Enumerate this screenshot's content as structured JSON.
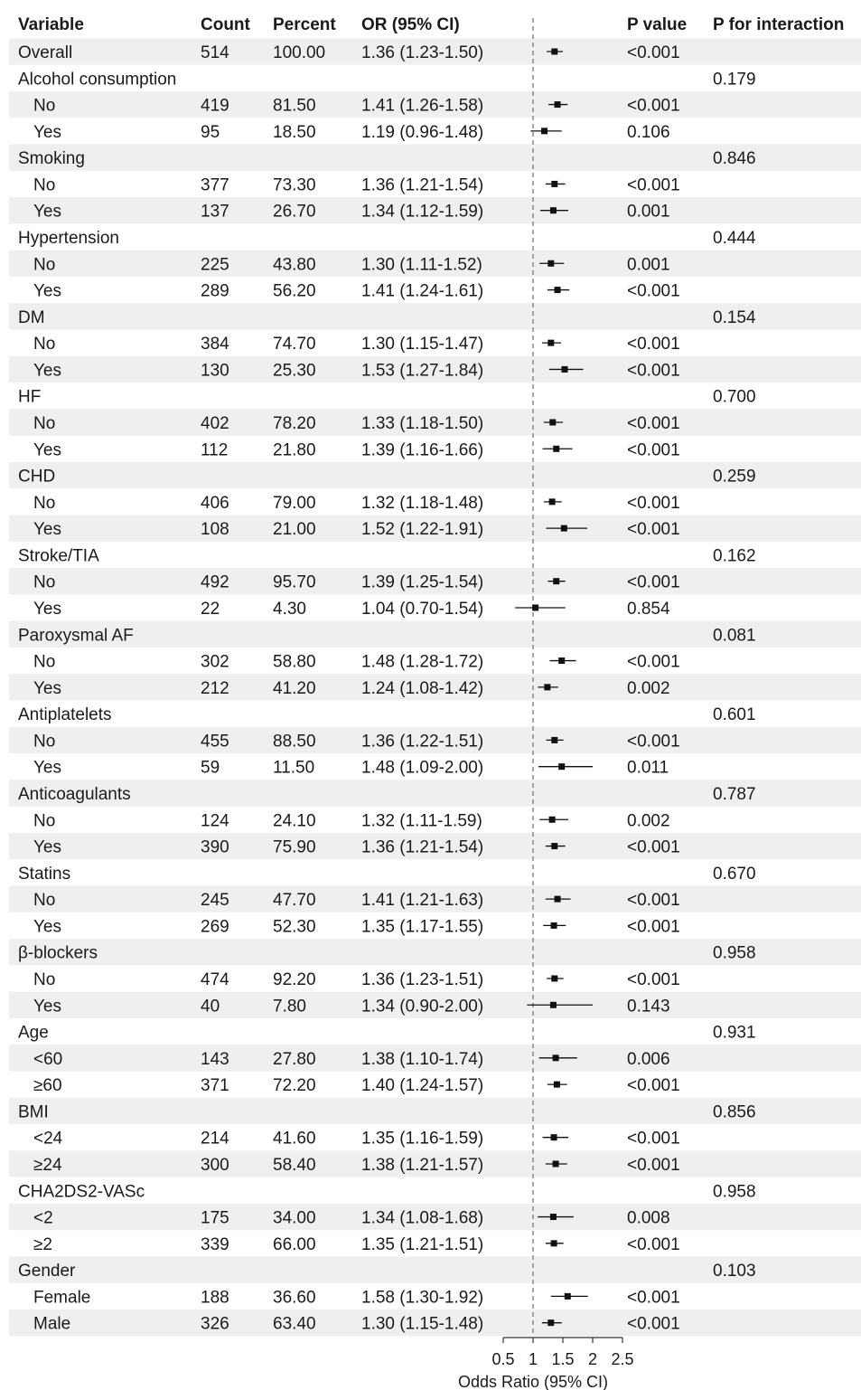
{
  "chart_data": {
    "type": "forest",
    "headers": {
      "variable": "Variable",
      "count": "Count",
      "percent": "Percent",
      "or": "OR (95% CI)",
      "p": "P value",
      "p_int": "P for interaction"
    },
    "xlabel": "Odds Ratio (95% CI)",
    "xlim": [
      0.5,
      2.5
    ],
    "ticks": [
      "0.5",
      "1",
      "1.5",
      "2",
      "2.5"
    ],
    "reference_line": 1,
    "rows": [
      {
        "label": "Overall",
        "group": true,
        "count": "514",
        "percent": "100.00",
        "or_text": "1.36 (1.23-1.50)",
        "p": "<0.001",
        "p_int": "",
        "or": 1.36,
        "lo": 1.23,
        "hi": 1.5
      },
      {
        "label": "Alcohol consumption",
        "group": true,
        "p_int": "0.179"
      },
      {
        "label": "No",
        "count": "419",
        "percent": "81.50",
        "or_text": "1.41 (1.26-1.58)",
        "p": "<0.001",
        "or": 1.41,
        "lo": 1.26,
        "hi": 1.58
      },
      {
        "label": "Yes",
        "count": "95",
        "percent": "18.50",
        "or_text": "1.19 (0.96-1.48)",
        "p": "0.106",
        "or": 1.19,
        "lo": 0.96,
        "hi": 1.48
      },
      {
        "label": "Smoking",
        "group": true,
        "p_int": "0.846"
      },
      {
        "label": "No",
        "count": "377",
        "percent": "73.30",
        "or_text": "1.36 (1.21-1.54)",
        "p": "<0.001",
        "or": 1.36,
        "lo": 1.21,
        "hi": 1.54
      },
      {
        "label": "Yes",
        "count": "137",
        "percent": "26.70",
        "or_text": "1.34 (1.12-1.59)",
        "p": "0.001",
        "or": 1.34,
        "lo": 1.12,
        "hi": 1.59
      },
      {
        "label": "Hypertension",
        "group": true,
        "p_int": "0.444"
      },
      {
        "label": "No",
        "count": "225",
        "percent": "43.80",
        "or_text": "1.30 (1.11-1.52)",
        "p": "0.001",
        "or": 1.3,
        "lo": 1.11,
        "hi": 1.52
      },
      {
        "label": "Yes",
        "count": "289",
        "percent": "56.20",
        "or_text": "1.41 (1.24-1.61)",
        "p": "<0.001",
        "or": 1.41,
        "lo": 1.24,
        "hi": 1.61
      },
      {
        "label": "DM",
        "group": true,
        "p_int": "0.154"
      },
      {
        "label": "No",
        "count": "384",
        "percent": "74.70",
        "or_text": "1.30 (1.15-1.47)",
        "p": "<0.001",
        "or": 1.3,
        "lo": 1.15,
        "hi": 1.47
      },
      {
        "label": "Yes",
        "count": "130",
        "percent": "25.30",
        "or_text": "1.53 (1.27-1.84)",
        "p": "<0.001",
        "or": 1.53,
        "lo": 1.27,
        "hi": 1.84
      },
      {
        "label": "HF",
        "group": true,
        "p_int": "0.700"
      },
      {
        "label": "No",
        "count": "402",
        "percent": "78.20",
        "or_text": "1.33 (1.18-1.50)",
        "p": "<0.001",
        "or": 1.33,
        "lo": 1.18,
        "hi": 1.5
      },
      {
        "label": "Yes",
        "count": "112",
        "percent": "21.80",
        "or_text": "1.39 (1.16-1.66)",
        "p": "<0.001",
        "or": 1.39,
        "lo": 1.16,
        "hi": 1.66
      },
      {
        "label": "CHD",
        "group": true,
        "p_int": "0.259"
      },
      {
        "label": "No",
        "count": "406",
        "percent": "79.00",
        "or_text": "1.32 (1.18-1.48)",
        "p": "<0.001",
        "or": 1.32,
        "lo": 1.18,
        "hi": 1.48
      },
      {
        "label": "Yes",
        "count": "108",
        "percent": "21.00",
        "or_text": "1.52 (1.22-1.91)",
        "p": "<0.001",
        "or": 1.52,
        "lo": 1.22,
        "hi": 1.91
      },
      {
        "label": "Stroke/TIA",
        "group": true,
        "p_int": "0.162"
      },
      {
        "label": "No",
        "count": "492",
        "percent": "95.70",
        "or_text": "1.39 (1.25-1.54)",
        "p": "<0.001",
        "or": 1.39,
        "lo": 1.25,
        "hi": 1.54
      },
      {
        "label": "Yes",
        "count": "22",
        "percent": "4.30",
        "or_text": "1.04 (0.70-1.54)",
        "p": "0.854",
        "or": 1.04,
        "lo": 0.7,
        "hi": 1.54
      },
      {
        "label": "Paroxysmal AF",
        "group": true,
        "p_int": "0.081"
      },
      {
        "label": "No",
        "count": "302",
        "percent": "58.80",
        "or_text": "1.48 (1.28-1.72)",
        "p": "<0.001",
        "or": 1.48,
        "lo": 1.28,
        "hi": 1.72
      },
      {
        "label": "Yes",
        "count": "212",
        "percent": "41.20",
        "or_text": "1.24 (1.08-1.42)",
        "p": "0.002",
        "or": 1.24,
        "lo": 1.08,
        "hi": 1.42
      },
      {
        "label": "Antiplatelets",
        "group": true,
        "p_int": "0.601"
      },
      {
        "label": "No",
        "count": "455",
        "percent": "88.50",
        "or_text": "1.36 (1.22-1.51)",
        "p": "<0.001",
        "or": 1.36,
        "lo": 1.22,
        "hi": 1.51
      },
      {
        "label": "Yes",
        "count": "59",
        "percent": "11.50",
        "or_text": "1.48 (1.09-2.00)",
        "p": "0.011",
        "or": 1.48,
        "lo": 1.09,
        "hi": 2.0
      },
      {
        "label": "Anticoagulants",
        "group": true,
        "p_int": "0.787"
      },
      {
        "label": "No",
        "count": "124",
        "percent": "24.10",
        "or_text": "1.32 (1.11-1.59)",
        "p": "0.002",
        "or": 1.32,
        "lo": 1.11,
        "hi": 1.59
      },
      {
        "label": "Yes",
        "count": "390",
        "percent": "75.90",
        "or_text": "1.36 (1.21-1.54)",
        "p": "<0.001",
        "or": 1.36,
        "lo": 1.21,
        "hi": 1.54
      },
      {
        "label": "Statins",
        "group": true,
        "p_int": "0.670"
      },
      {
        "label": "No",
        "count": "245",
        "percent": "47.70",
        "or_text": "1.41 (1.21-1.63)",
        "p": "<0.001",
        "or": 1.41,
        "lo": 1.21,
        "hi": 1.63
      },
      {
        "label": "Yes",
        "count": "269",
        "percent": "52.30",
        "or_text": "1.35 (1.17-1.55)",
        "p": "<0.001",
        "or": 1.35,
        "lo": 1.17,
        "hi": 1.55
      },
      {
        "label": "β-blockers",
        "group": true,
        "p_int": "0.958"
      },
      {
        "label": "No",
        "count": "474",
        "percent": "92.20",
        "or_text": "1.36 (1.23-1.51)",
        "p": "<0.001",
        "or": 1.36,
        "lo": 1.23,
        "hi": 1.51
      },
      {
        "label": "Yes",
        "count": "40",
        "percent": "7.80",
        "or_text": "1.34 (0.90-2.00)",
        "p": "0.143",
        "or": 1.34,
        "lo": 0.9,
        "hi": 2.0
      },
      {
        "label": "Age",
        "group": true,
        "p_int": "0.931"
      },
      {
        "label": "<60",
        "count": "143",
        "percent": "27.80",
        "or_text": "1.38 (1.10-1.74)",
        "p": "0.006",
        "or": 1.38,
        "lo": 1.1,
        "hi": 1.74
      },
      {
        "label": "≥60",
        "count": "371",
        "percent": "72.20",
        "or_text": "1.40 (1.24-1.57)",
        "p": "<0.001",
        "or": 1.4,
        "lo": 1.24,
        "hi": 1.57
      },
      {
        "label": "BMI",
        "group": true,
        "p_int": "0.856"
      },
      {
        "label": "<24",
        "count": "214",
        "percent": "41.60",
        "or_text": "1.35 (1.16-1.59)",
        "p": "<0.001",
        "or": 1.35,
        "lo": 1.16,
        "hi": 1.59
      },
      {
        "label": "≥24",
        "count": "300",
        "percent": "58.40",
        "or_text": "1.38 (1.21-1.57)",
        "p": "<0.001",
        "or": 1.38,
        "lo": 1.21,
        "hi": 1.57
      },
      {
        "label": "CHA2DS2-VASc",
        "group": true,
        "p_int": "0.958"
      },
      {
        "label": "<2",
        "count": "175",
        "percent": "34.00",
        "or_text": "1.34 (1.08-1.68)",
        "p": "0.008",
        "or": 1.34,
        "lo": 1.08,
        "hi": 1.68
      },
      {
        "label": "≥2",
        "count": "339",
        "percent": "66.00",
        "or_text": "1.35 (1.21-1.51)",
        "p": "<0.001",
        "or": 1.35,
        "lo": 1.21,
        "hi": 1.51
      },
      {
        "label": "Gender",
        "group": true,
        "p_int": "0.103"
      },
      {
        "label": "Female",
        "count": "188",
        "percent": "36.60",
        "or_text": "1.58 (1.30-1.92)",
        "p": "<0.001",
        "or": 1.58,
        "lo": 1.3,
        "hi": 1.92
      },
      {
        "label": "Male",
        "count": "326",
        "percent": "63.40",
        "or_text": "1.30 (1.15-1.48)",
        "p": "<0.001",
        "or": 1.3,
        "lo": 1.15,
        "hi": 1.48
      }
    ]
  }
}
